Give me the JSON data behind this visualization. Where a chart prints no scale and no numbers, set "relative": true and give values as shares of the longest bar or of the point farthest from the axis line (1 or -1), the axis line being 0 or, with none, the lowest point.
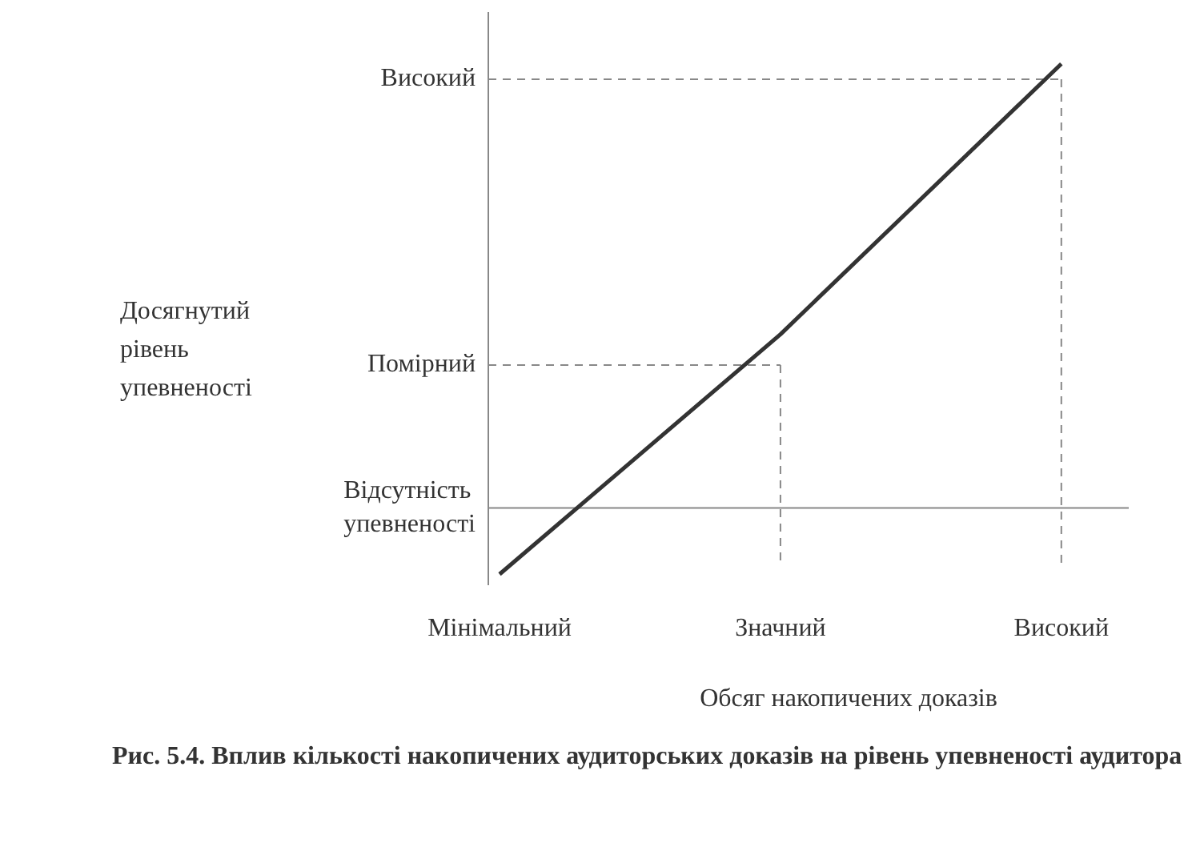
{
  "chart_data": {
    "type": "line",
    "relative": true,
    "title": "Рис. 5.4. Вплив кількості накопичених аудиторських доказів на рівень упевненості аудитора",
    "xlabel": "Обсяг накопичених доказів",
    "categories": [
      "Мінімальний",
      "Значний",
      "Високий"
    ],
    "annotations": [
      "Досягнутий рівень упевненості"
    ],
    "grid": false,
    "legend": false,
    "marker": "none",
    "ref_lines": [
      {
        "axis": "y",
        "value": 0.13,
        "label": "Відсутність упевненості",
        "color": "#888888",
        "line_style": "solid"
      },
      {
        "axis": "y",
        "value": 0.41,
        "label": "Помірний",
        "color": "#888888",
        "line_style": "dashed"
      },
      {
        "axis": "y",
        "value": 0.97,
        "label": "Високий",
        "color": "#888888",
        "line_style": "dashed"
      },
      {
        "axis": "x",
        "value": "Значний",
        "color": "#888888",
        "line_style": "dashed"
      },
      {
        "axis": "x",
        "value": "Високий",
        "color": "#888888",
        "line_style": "dashed"
      }
    ],
    "series": [
      {
        "values": [
          0,
          0.47,
          1
        ],
        "color": "#333333"
      }
    ]
  }
}
